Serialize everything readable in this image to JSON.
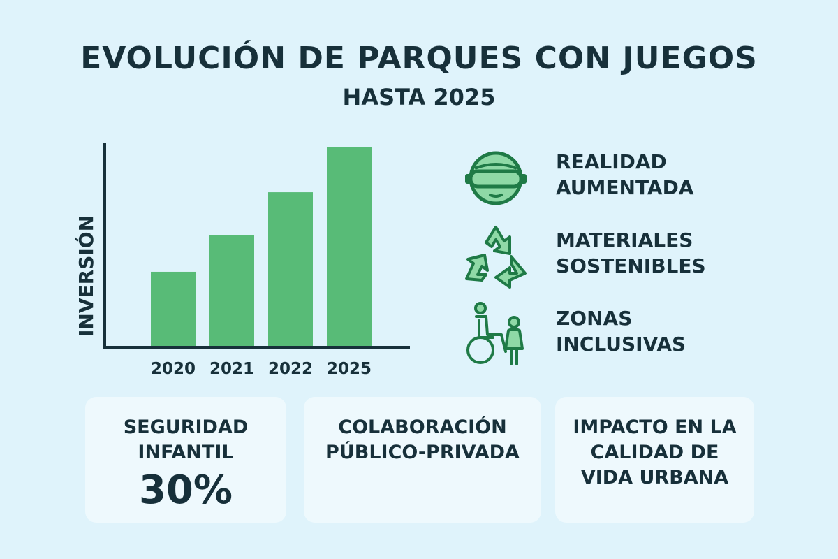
{
  "header": {
    "title": "EVOLUCIÓN DE PARQUES CON JUEGOS",
    "subtitle": "HASTA 2025"
  },
  "colors": {
    "background": "#dff3fb",
    "bar": "#58bb77",
    "text": "#17303a",
    "icon_fill": "#8fd9a6",
    "icon_stroke": "#1f7a46",
    "card": "#eef9fd"
  },
  "chart_data": {
    "type": "bar",
    "title": "",
    "xlabel": "",
    "ylabel": "INVERSIÓN",
    "categories": [
      "2020",
      "2021",
      "2022",
      "2025"
    ],
    "values": [
      37,
      55,
      76,
      98
    ],
    "ylim": [
      0,
      100
    ],
    "grid": false,
    "legend": false
  },
  "features": [
    {
      "icon": "vr-headset-icon",
      "lines": [
        "REALIDAD",
        "AUMENTADA"
      ]
    },
    {
      "icon": "recycle-icon",
      "lines": [
        "MATERIALES",
        "SOSTENIBLES"
      ]
    },
    {
      "icon": "wheelchair-child-icon",
      "lines": [
        "ZONAS",
        "INCLUSIVAS"
      ]
    }
  ],
  "cards": [
    {
      "lines": [
        "SEGURIDAD",
        "INFANTIL"
      ],
      "value": "30%"
    },
    {
      "lines": [
        "COLABORACIÓN",
        "PÚBLICO-PRIVADA"
      ]
    },
    {
      "lines": [
        "IMPACTO EN LA",
        "CALIDAD DE",
        "VIDA URBANA"
      ]
    }
  ]
}
